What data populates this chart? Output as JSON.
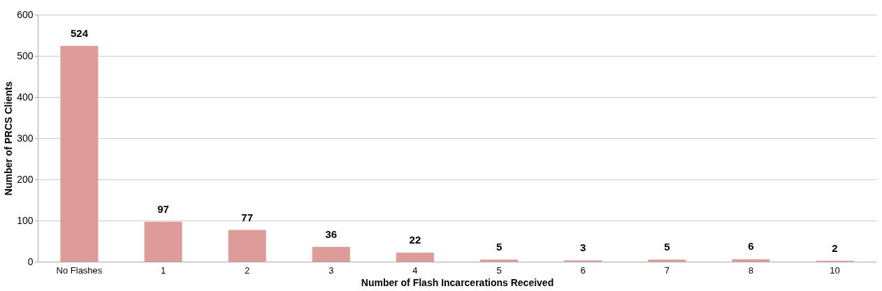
{
  "chart_data": {
    "type": "bar",
    "xlabel": "Number of Flash Incarcerations Received",
    "ylabel": "Number of PRCS Clients",
    "categories": [
      "No Flashes",
      "1",
      "2",
      "3",
      "4",
      "5",
      "6",
      "7",
      "8",
      "10"
    ],
    "values": [
      524,
      97,
      77,
      36,
      22,
      5,
      3,
      5,
      6,
      2
    ],
    "color": "#dd9c98",
    "ylim": [
      0,
      600
    ],
    "yticks": [
      0,
      100,
      200,
      300,
      400,
      500,
      600
    ],
    "grid": "y",
    "data_labels": true
  }
}
